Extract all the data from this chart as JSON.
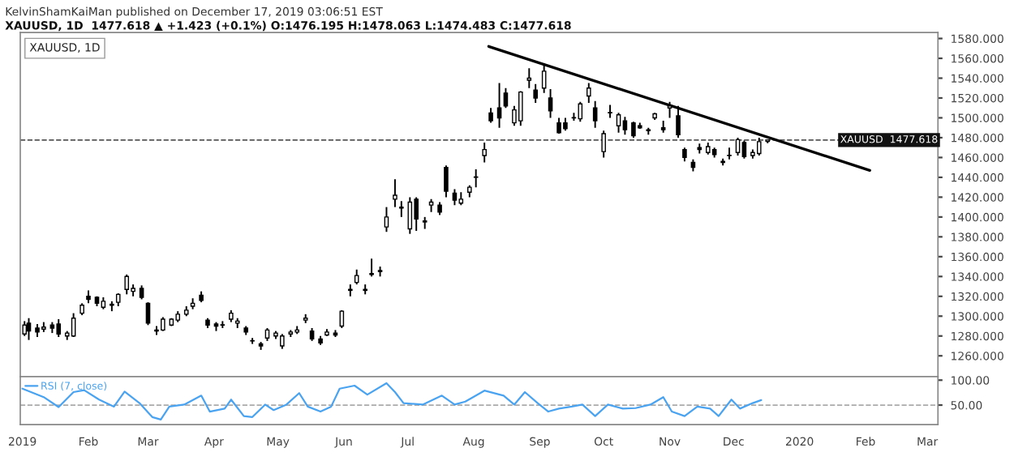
{
  "chart_data": [
    {
      "type": "candlestick",
      "title": "KelvinShamKaiMan published on December 17, 2019 03:06:51 EST",
      "subtitle": "XAUUSD, 1D  1477.618 ▲ +1.423 (+0.1%) O:1476.195 H:1478.063 L:1474.483 C:1477.618",
      "annotations": [
        "XAUUSD, 1D"
      ],
      "color": "#000000",
      "x": [
        "2019-01-02",
        "2019-01-04",
        "2019-01-08",
        "2019-01-11",
        "2019-01-15",
        "2019-01-18",
        "2019-01-22",
        "2019-01-25",
        "2019-01-29",
        "2019-02-01",
        "2019-02-05",
        "2019-02-08",
        "2019-02-12",
        "2019-02-15",
        "2019-02-19",
        "2019-02-22",
        "2019-02-26",
        "2019-03-01",
        "2019-03-05",
        "2019-03-08",
        "2019-03-12",
        "2019-03-15",
        "2019-03-19",
        "2019-03-22",
        "2019-03-26",
        "2019-03-29",
        "2019-04-02",
        "2019-04-05",
        "2019-04-09",
        "2019-04-12",
        "2019-04-16",
        "2019-04-19",
        "2019-04-23",
        "2019-04-26",
        "2019-04-30",
        "2019-05-03",
        "2019-05-07",
        "2019-05-10",
        "2019-05-14",
        "2019-05-17",
        "2019-05-21",
        "2019-05-24",
        "2019-05-28",
        "2019-05-31",
        "2019-06-04",
        "2019-06-07",
        "2019-06-11",
        "2019-06-14",
        "2019-06-18",
        "2019-06-21",
        "2019-06-25",
        "2019-06-28",
        "2019-07-02",
        "2019-07-05",
        "2019-07-09",
        "2019-07-12",
        "2019-07-16",
        "2019-07-19",
        "2019-07-23",
        "2019-07-26",
        "2019-07-30",
        "2019-08-02",
        "2019-08-06",
        "2019-08-09",
        "2019-08-13",
        "2019-08-16",
        "2019-08-20",
        "2019-08-23",
        "2019-08-27",
        "2019-08-30",
        "2019-09-03",
        "2019-09-06",
        "2019-09-10",
        "2019-09-13",
        "2019-09-17",
        "2019-09-20",
        "2019-09-24",
        "2019-09-27",
        "2019-10-01",
        "2019-10-04",
        "2019-10-08",
        "2019-10-11",
        "2019-10-15",
        "2019-10-18",
        "2019-10-22",
        "2019-10-25",
        "2019-10-29",
        "2019-11-01",
        "2019-11-05",
        "2019-11-08",
        "2019-11-12",
        "2019-11-15",
        "2019-11-19",
        "2019-11-22",
        "2019-11-26",
        "2019-11-29",
        "2019-12-03",
        "2019-12-06",
        "2019-12-10",
        "2019-12-13",
        "2019-12-17"
      ],
      "ohlc": [
        [
          1282,
          1295,
          1280,
          1291
        ],
        [
          1293,
          1298,
          1276,
          1285
        ],
        [
          1288,
          1292,
          1279,
          1284
        ],
        [
          1287,
          1294,
          1284,
          1289
        ],
        [
          1291,
          1294,
          1283,
          1288
        ],
        [
          1292,
          1297,
          1279,
          1282
        ],
        [
          1280,
          1285,
          1276,
          1283
        ],
        [
          1280,
          1303,
          1279,
          1298
        ],
        [
          1303,
          1313,
          1301,
          1311
        ],
        [
          1320,
          1326,
          1313,
          1317
        ],
        [
          1319,
          1320,
          1310,
          1313
        ],
        [
          1309,
          1319,
          1307,
          1315
        ],
        [
          1311,
          1315,
          1305,
          1312
        ],
        [
          1314,
          1323,
          1310,
          1322
        ],
        [
          1327,
          1342,
          1322,
          1340
        ],
        [
          1325,
          1332,
          1320,
          1328
        ],
        [
          1328,
          1331,
          1317,
          1319
        ],
        [
          1313,
          1314,
          1291,
          1293
        ],
        [
          1286,
          1290,
          1281,
          1285
        ],
        [
          1286,
          1299,
          1285,
          1297
        ],
        [
          1291,
          1298,
          1290,
          1297
        ],
        [
          1296,
          1305,
          1294,
          1302
        ],
        [
          1302,
          1310,
          1300,
          1306
        ],
        [
          1310,
          1318,
          1307,
          1313
        ],
        [
          1321,
          1325,
          1314,
          1316
        ],
        [
          1296,
          1298,
          1288,
          1291
        ],
        [
          1292,
          1294,
          1285,
          1290
        ],
        [
          1291,
          1295,
          1288,
          1291
        ],
        [
          1297,
          1306,
          1294,
          1303
        ],
        [
          1293,
          1298,
          1288,
          1295
        ],
        [
          1288,
          1290,
          1281,
          1284
        ],
        [
          1275,
          1278,
          1272,
          1275
        ],
        [
          1272,
          1274,
          1266,
          1270
        ],
        [
          1278,
          1288,
          1275,
          1286
        ],
        [
          1280,
          1285,
          1277,
          1283
        ],
        [
          1270,
          1282,
          1267,
          1280
        ],
        [
          1282,
          1286,
          1279,
          1284
        ],
        [
          1284,
          1290,
          1282,
          1286
        ],
        [
          1296,
          1302,
          1293,
          1298
        ],
        [
          1285,
          1288,
          1275,
          1277
        ],
        [
          1277,
          1280,
          1271,
          1273
        ],
        [
          1281,
          1287,
          1280,
          1284
        ],
        [
          1283,
          1286,
          1279,
          1281
        ],
        [
          1290,
          1306,
          1288,
          1305
        ],
        [
          1327,
          1332,
          1320,
          1326
        ],
        [
          1334,
          1347,
          1332,
          1341
        ],
        [
          1327,
          1332,
          1322,
          1326
        ],
        [
          1343,
          1358,
          1340,
          1342
        ],
        [
          1345,
          1350,
          1340,
          1346
        ],
        [
          1390,
          1410,
          1385,
          1400
        ],
        [
          1418,
          1438,
          1410,
          1422
        ],
        [
          1410,
          1416,
          1400,
          1409
        ],
        [
          1388,
          1420,
          1383,
          1415
        ],
        [
          1418,
          1420,
          1386,
          1398
        ],
        [
          1395,
          1400,
          1388,
          1396
        ],
        [
          1412,
          1418,
          1405,
          1415
        ],
        [
          1412,
          1415,
          1402,
          1405
        ],
        [
          1450,
          1452,
          1420,
          1426
        ],
        [
          1424,
          1428,
          1412,
          1417
        ],
        [
          1414,
          1425,
          1412,
          1418
        ],
        [
          1425,
          1432,
          1420,
          1430
        ],
        [
          1440,
          1448,
          1430,
          1440
        ],
        [
          1462,
          1475,
          1455,
          1468
        ],
        [
          1505,
          1510,
          1495,
          1497
        ],
        [
          1510,
          1535,
          1490,
          1500
        ],
        [
          1525,
          1530,
          1510,
          1512
        ],
        [
          1495,
          1512,
          1492,
          1508
        ],
        [
          1497,
          1527,
          1492,
          1526
        ],
        [
          1538,
          1550,
          1530,
          1540
        ],
        [
          1528,
          1534,
          1515,
          1520
        ],
        [
          1530,
          1555,
          1525,
          1547
        ],
        [
          1520,
          1529,
          1500,
          1507
        ],
        [
          1495,
          1500,
          1484,
          1485
        ],
        [
          1495,
          1500,
          1487,
          1489
        ],
        [
          1500,
          1505,
          1497,
          1500
        ],
        [
          1499,
          1516,
          1496,
          1514
        ],
        [
          1522,
          1535,
          1515,
          1530
        ],
        [
          1510,
          1517,
          1490,
          1497
        ],
        [
          1466,
          1487,
          1460,
          1484
        ],
        [
          1505,
          1513,
          1500,
          1505
        ],
        [
          1492,
          1505,
          1485,
          1503
        ],
        [
          1497,
          1501,
          1483,
          1488
        ],
        [
          1495,
          1496,
          1480,
          1482
        ],
        [
          1492,
          1495,
          1489,
          1490
        ],
        [
          1487,
          1490,
          1483,
          1488
        ],
        [
          1500,
          1505,
          1498,
          1504
        ],
        [
          1490,
          1497,
          1485,
          1488
        ],
        [
          1510,
          1516,
          1500,
          1512
        ],
        [
          1502,
          1512,
          1480,
          1483
        ],
        [
          1468,
          1470,
          1456,
          1460
        ],
        [
          1455,
          1458,
          1446,
          1450
        ],
        [
          1470,
          1474,
          1464,
          1468
        ],
        [
          1465,
          1475,
          1463,
          1471
        ],
        [
          1468,
          1470,
          1460,
          1463
        ],
        [
          1456,
          1459,
          1452,
          1455
        ],
        [
          1462,
          1470,
          1458,
          1462
        ],
        [
          1465,
          1480,
          1462,
          1478
        ],
        [
          1475,
          1477,
          1459,
          1461
        ],
        [
          1462,
          1468,
          1459,
          1465
        ],
        [
          1464,
          1480,
          1462,
          1476
        ],
        [
          1476.195,
          1478.063,
          1474.483,
          1477.618
        ]
      ],
      "series": [
        {
          "type": "line",
          "color": "#000000",
          "x": [
            "2019-08-08",
            "2020-02-03"
          ],
          "values": [
            1572,
            1447
          ]
        }
      ],
      "xlim": [
        "2018-12-31",
        "2020-03-06"
      ],
      "ylim": [
        1239,
        1586
      ],
      "yticks": [
        {
          "value": 1260,
          "label": "1260.000"
        },
        {
          "value": 1280,
          "label": "1280.000"
        },
        {
          "value": 1300,
          "label": "1300.000"
        },
        {
          "value": 1320,
          "label": "1320.000"
        },
        {
          "value": 1340,
          "label": "1340.000"
        },
        {
          "value": 1360,
          "label": "1360.000"
        },
        {
          "value": 1380,
          "label": "1380.000"
        },
        {
          "value": 1400,
          "label": "1400.000"
        },
        {
          "value": 1420,
          "label": "1420.000"
        },
        {
          "value": 1440,
          "label": "1440.000"
        },
        {
          "value": 1460,
          "label": "1460.000"
        },
        {
          "value": 1480,
          "label": "1480.000"
        },
        {
          "value": 1500,
          "label": "1500.000"
        },
        {
          "value": 1520,
          "label": "1520.000"
        },
        {
          "value": 1540,
          "label": "1540.000"
        },
        {
          "value": 1560,
          "label": "1560.000"
        },
        {
          "value": 1580,
          "label": "1580.000"
        }
      ],
      "ref_lines": [
        {
          "axis": "y",
          "value": 1477.618,
          "label": "XAUUSD  1477.618",
          "color": "#555555",
          "line_style": "dashed"
        }
      ],
      "tick_labels": "y"
    },
    {
      "type": "line",
      "series": [
        {
          "name": "RSI (7, close)",
          "color": "#4aa3f0",
          "x": [
            "2019-01-01",
            "2019-01-11",
            "2019-01-18",
            "2019-01-25",
            "2019-01-30",
            "2019-02-06",
            "2019-02-13",
            "2019-02-18",
            "2019-02-25",
            "2019-03-03",
            "2019-03-07",
            "2019-03-11",
            "2019-03-18",
            "2019-03-26",
            "2019-03-30",
            "2019-04-06",
            "2019-04-09",
            "2019-04-15",
            "2019-04-19",
            "2019-04-25",
            "2019-04-29",
            "2019-05-05",
            "2019-05-11",
            "2019-05-15",
            "2019-05-21",
            "2019-05-26",
            "2019-05-30",
            "2019-06-06",
            "2019-06-12",
            "2019-06-21",
            "2019-06-25",
            "2019-06-29",
            "2019-07-08",
            "2019-07-17",
            "2019-07-23",
            "2019-07-28",
            "2019-08-06",
            "2019-08-15",
            "2019-08-20",
            "2019-08-25",
            "2019-08-31",
            "2019-09-05",
            "2019-09-10",
            "2019-09-16",
            "2019-09-21",
            "2019-09-27",
            "2019-10-03",
            "2019-10-10",
            "2019-10-16",
            "2019-10-23",
            "2019-10-29",
            "2019-11-02",
            "2019-11-08",
            "2019-11-14",
            "2019-11-20",
            "2019-11-24",
            "2019-11-30",
            "2019-12-04",
            "2019-12-10",
            "2019-12-14"
          ],
          "values": [
            83,
            66,
            46,
            76,
            80,
            61,
            47,
            77,
            54,
            26,
            21,
            47,
            51,
            69,
            37,
            43,
            61,
            28,
            26,
            51,
            40,
            51,
            74,
            47,
            37,
            47,
            83,
            89,
            71,
            94,
            76,
            54,
            51,
            69,
            51,
            57,
            79,
            69,
            51,
            76,
            54,
            37,
            43,
            47,
            51,
            28,
            51,
            43,
            44,
            51,
            66,
            37,
            28,
            47,
            43,
            28,
            61,
            43,
            54,
            60
          ]
        }
      ],
      "xlim": [
        "2018-12-31",
        "2020-03-06"
      ],
      "ylim": [
        11,
        107
      ],
      "yticks": [
        {
          "value": 50,
          "label": "50.00"
        },
        {
          "value": 100,
          "label": "100.00"
        }
      ],
      "xticks": [
        {
          "value": "2019-01-01",
          "label": "2019"
        },
        {
          "value": "2019-02-01",
          "label": "Feb"
        },
        {
          "value": "2019-03-01",
          "label": "Mar"
        },
        {
          "value": "2019-04-01",
          "label": "Apr"
        },
        {
          "value": "2019-05-01",
          "label": "May"
        },
        {
          "value": "2019-06-01",
          "label": "Jun"
        },
        {
          "value": "2019-07-01",
          "label": "Jul"
        },
        {
          "value": "2019-08-01",
          "label": "Aug"
        },
        {
          "value": "2019-09-01",
          "label": "Sep"
        },
        {
          "value": "2019-10-01",
          "label": "Oct"
        },
        {
          "value": "2019-11-01",
          "label": "Nov"
        },
        {
          "value": "2019-12-01",
          "label": "Dec"
        },
        {
          "value": "2020-01-01",
          "label": "2020"
        },
        {
          "value": "2020-02-01",
          "label": "Feb"
        },
        {
          "value": "2020-03-01",
          "label": "Mar"
        }
      ],
      "ref_lines": [
        {
          "axis": "y",
          "value": 50,
          "color": "#aaaaaa",
          "line_style": "dashed"
        }
      ],
      "legend": "top left"
    }
  ]
}
